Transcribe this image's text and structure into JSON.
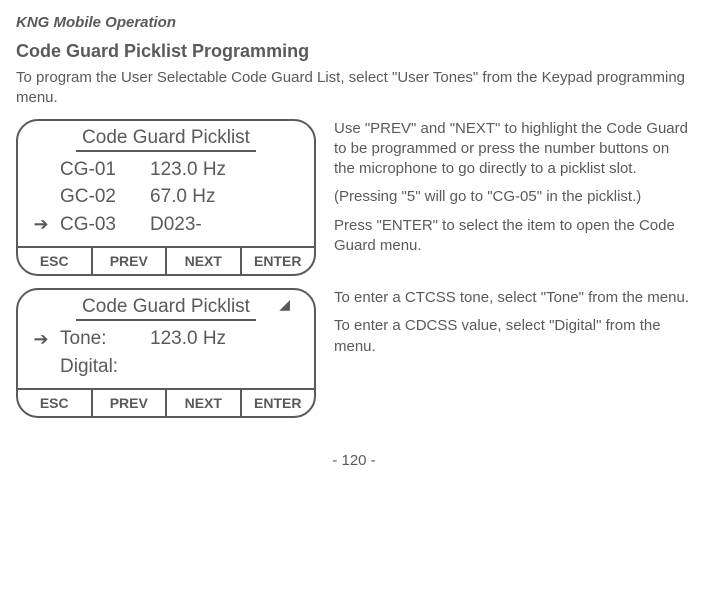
{
  "page_header": "KNG Mobile Operation",
  "section_title": "Code Guard Picklist Programming",
  "intro": "To program the User Selectable Code Guard List, select \"User Tones\" from the Keypad programming menu.",
  "device1": {
    "title": "Code Guard Picklist",
    "rows": [
      {
        "arrow": "",
        "a": "CG-01",
        "b": "123.0 Hz"
      },
      {
        "arrow": "",
        "a": "GC-02",
        "b": "67.0  Hz"
      },
      {
        "arrow": "➔",
        "a": "CG-03",
        "b": "D023-"
      }
    ],
    "buttons": [
      "ESC",
      "PREV",
      "NEXT",
      "ENTER"
    ]
  },
  "text1_p1": "Use \"PREV\" and \"NEXT\" to highlight the Code Guard to be programmed or press the number buttons on the microphone to go directly to a picklist slot.",
  "text1_p2": "(Pressing \"5\" will go to \"CG-05\" in the picklist.)",
  "text1_p3": "Press \"ENTER\" to select the item to open the Code Guard menu.",
  "device2": {
    "title": "Code Guard Picklist",
    "tick": "◢",
    "rows": [
      {
        "arrow": "",
        "a": "",
        "b": ""
      },
      {
        "arrow": "➔",
        "a": "Tone:",
        "b": "123.0 Hz"
      },
      {
        "arrow": "",
        "a": "Digital:",
        "b": ""
      }
    ],
    "buttons": [
      "ESC",
      "PREV",
      "NEXT",
      "ENTER"
    ]
  },
  "text2_p1": "To enter a CTCSS tone, select \"Tone\" from the menu.",
  "text2_p2": "To enter a CDCSS value, select \"Digital\" from the menu.",
  "page_number": "- 120 -"
}
